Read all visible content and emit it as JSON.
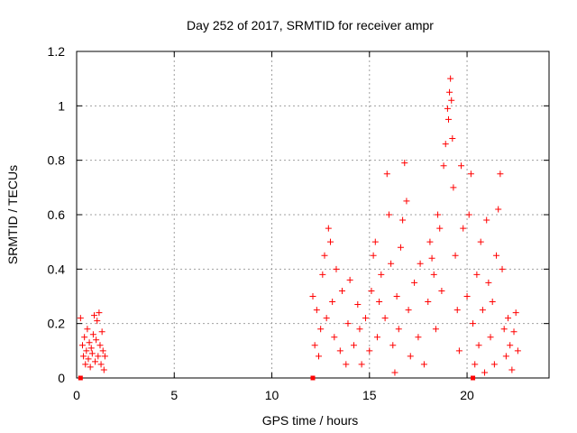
{
  "chart_data": {
    "type": "scatter",
    "title": "Day 252 of 2017, SRMTID for receiver ampr",
    "xlabel": "GPS time / hours",
    "ylabel": "SRMTID / TECUs",
    "xlim": [
      0,
      24.2
    ],
    "ylim": [
      0,
      1.2
    ],
    "x_ticks": [
      0,
      5,
      10,
      15,
      20
    ],
    "x_tick_labels": [
      "0",
      "5",
      "10",
      "15",
      "20"
    ],
    "y_ticks": [
      0,
      0.2,
      0.4,
      0.6,
      0.8,
      1.0,
      1.2
    ],
    "y_tick_labels": [
      "0",
      "0.2",
      "0.4",
      "0.6",
      "0.8",
      "1",
      "1.2"
    ],
    "grid": true,
    "legend": "none",
    "marker": "plus",
    "color": "#ff0000",
    "baseline_markers_x": [
      0.2,
      12.1,
      20.3
    ],
    "series": [
      {
        "values": [
          [
            0.2,
            0.22
          ],
          [
            0.3,
            0.12
          ],
          [
            0.35,
            0.08
          ],
          [
            0.4,
            0.15
          ],
          [
            0.45,
            0.05
          ],
          [
            0.5,
            0.1
          ],
          [
            0.55,
            0.18
          ],
          [
            0.6,
            0.07
          ],
          [
            0.65,
            0.13
          ],
          [
            0.7,
            0.04
          ],
          [
            0.75,
            0.11
          ],
          [
            0.8,
            0.09
          ],
          [
            0.85,
            0.16
          ],
          [
            0.9,
            0.23
          ],
          [
            0.95,
            0.06
          ],
          [
            1.0,
            0.14
          ],
          [
            1.05,
            0.21
          ],
          [
            1.1,
            0.08
          ],
          [
            1.15,
            0.24
          ],
          [
            1.2,
            0.12
          ],
          [
            1.25,
            0.05
          ],
          [
            1.3,
            0.17
          ],
          [
            1.35,
            0.1
          ],
          [
            1.4,
            0.03
          ],
          [
            1.45,
            0.08
          ],
          [
            12.1,
            0.3
          ],
          [
            12.2,
            0.12
          ],
          [
            12.3,
            0.25
          ],
          [
            12.4,
            0.08
          ],
          [
            12.5,
            0.18
          ],
          [
            12.6,
            0.38
          ],
          [
            12.7,
            0.45
          ],
          [
            12.8,
            0.22
          ],
          [
            12.9,
            0.55
          ],
          [
            13.0,
            0.5
          ],
          [
            13.1,
            0.28
          ],
          [
            13.2,
            0.15
          ],
          [
            13.3,
            0.4
          ],
          [
            13.5,
            0.1
          ],
          [
            13.6,
            0.32
          ],
          [
            13.8,
            0.05
          ],
          [
            13.9,
            0.2
          ],
          [
            14.0,
            0.36
          ],
          [
            14.2,
            0.12
          ],
          [
            14.4,
            0.27
          ],
          [
            14.5,
            0.18
          ],
          [
            14.6,
            0.05
          ],
          [
            14.8,
            0.22
          ],
          [
            15.0,
            0.1
          ],
          [
            15.1,
            0.32
          ],
          [
            15.2,
            0.45
          ],
          [
            15.3,
            0.5
          ],
          [
            15.4,
            0.15
          ],
          [
            15.5,
            0.28
          ],
          [
            15.6,
            0.38
          ],
          [
            15.8,
            0.22
          ],
          [
            15.9,
            0.75
          ],
          [
            16.0,
            0.6
          ],
          [
            16.1,
            0.42
          ],
          [
            16.2,
            0.12
          ],
          [
            16.3,
            0.02
          ],
          [
            16.4,
            0.3
          ],
          [
            16.5,
            0.18
          ],
          [
            16.6,
            0.48
          ],
          [
            16.7,
            0.58
          ],
          [
            16.8,
            0.79
          ],
          [
            16.9,
            0.65
          ],
          [
            17.0,
            0.25
          ],
          [
            17.1,
            0.08
          ],
          [
            17.3,
            0.35
          ],
          [
            17.5,
            0.15
          ],
          [
            17.6,
            0.42
          ],
          [
            17.8,
            0.05
          ],
          [
            18.0,
            0.28
          ],
          [
            18.1,
            0.5
          ],
          [
            18.2,
            0.44
          ],
          [
            18.3,
            0.38
          ],
          [
            18.4,
            0.18
          ],
          [
            18.5,
            0.6
          ],
          [
            18.6,
            0.55
          ],
          [
            18.7,
            0.32
          ],
          [
            18.8,
            0.78
          ],
          [
            18.9,
            0.86
          ],
          [
            19.0,
            0.99
          ],
          [
            19.05,
            0.95
          ],
          [
            19.1,
            1.05
          ],
          [
            19.15,
            1.1
          ],
          [
            19.2,
            1.02
          ],
          [
            19.25,
            0.88
          ],
          [
            19.3,
            0.7
          ],
          [
            19.4,
            0.45
          ],
          [
            19.5,
            0.25
          ],
          [
            19.6,
            0.1
          ],
          [
            19.7,
            0.78
          ],
          [
            19.8,
            0.55
          ],
          [
            20.0,
            0.3
          ],
          [
            20.1,
            0.6
          ],
          [
            20.2,
            0.75
          ],
          [
            20.3,
            0.2
          ],
          [
            20.4,
            0.05
          ],
          [
            20.5,
            0.38
          ],
          [
            20.6,
            0.12
          ],
          [
            20.7,
            0.5
          ],
          [
            20.8,
            0.25
          ],
          [
            20.9,
            0.02
          ],
          [
            21.0,
            0.58
          ],
          [
            21.1,
            0.35
          ],
          [
            21.2,
            0.15
          ],
          [
            21.3,
            0.28
          ],
          [
            21.4,
            0.05
          ],
          [
            21.5,
            0.45
          ],
          [
            21.6,
            0.62
          ],
          [
            21.7,
            0.75
          ],
          [
            21.8,
            0.4
          ],
          [
            21.9,
            0.18
          ],
          [
            22.0,
            0.08
          ],
          [
            22.1,
            0.22
          ],
          [
            22.2,
            0.12
          ],
          [
            22.3,
            0.03
          ],
          [
            22.4,
            0.17
          ],
          [
            22.5,
            0.24
          ],
          [
            22.6,
            0.1
          ]
        ]
      }
    ]
  }
}
